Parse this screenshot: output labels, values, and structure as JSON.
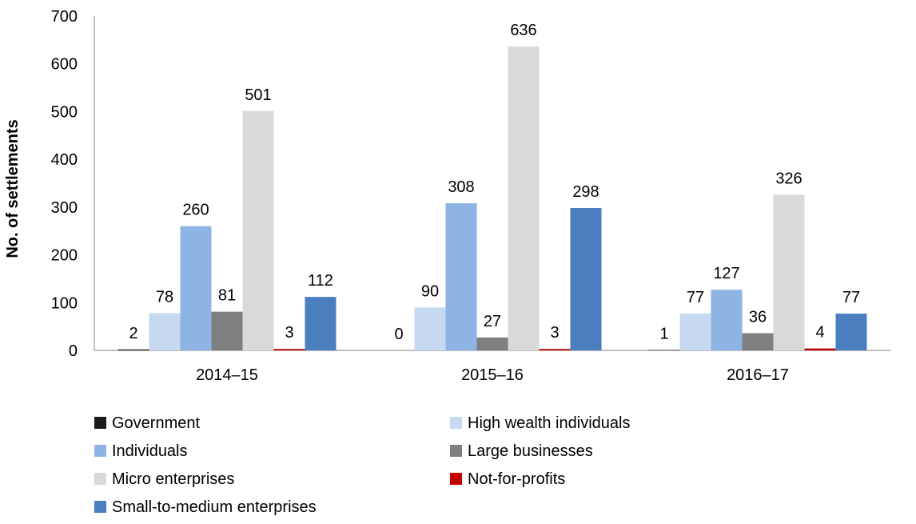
{
  "chart_data": {
    "type": "bar",
    "ylabel": "No. of settlements",
    "xlabel": "",
    "ylim": [
      0,
      700
    ],
    "yticks": [
      0,
      100,
      200,
      300,
      400,
      500,
      600,
      700
    ],
    "grid": false,
    "legend_position": "bottom",
    "categories": [
      "2014–15",
      "2015–16",
      "2016–17"
    ],
    "series": [
      {
        "name": "Government",
        "color": "#1a1a1a",
        "values": [
          2,
          0,
          1
        ]
      },
      {
        "name": "High wealth individuals",
        "color": "#c6d9f1",
        "values": [
          78,
          90,
          77
        ]
      },
      {
        "name": "Individuals",
        "color": "#8eb4e3",
        "values": [
          260,
          308,
          127
        ]
      },
      {
        "name": "Large businesses",
        "color": "#7f7f7f",
        "values": [
          81,
          27,
          36
        ]
      },
      {
        "name": "Micro enterprises",
        "color": "#d9d9d9",
        "values": [
          501,
          636,
          326
        ]
      },
      {
        "name": "Not-for-profits",
        "color": "#c00000",
        "values": [
          3,
          3,
          4
        ]
      },
      {
        "name": "Small-to-medium enterprises",
        "color": "#4a7ebf",
        "values": [
          112,
          298,
          77
        ]
      }
    ]
  }
}
